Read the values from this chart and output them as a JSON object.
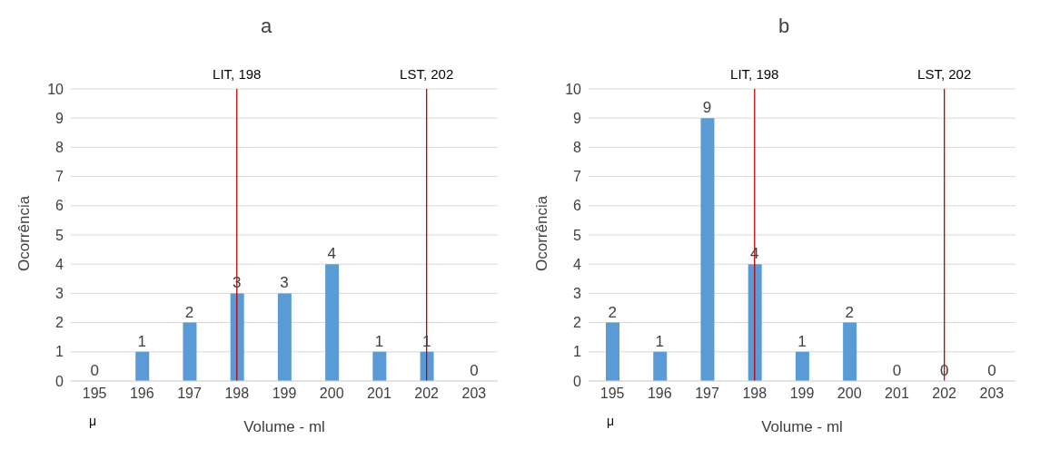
{
  "chart_data": [
    {
      "type": "bar",
      "title": "a",
      "xlabel": "Volume - ml",
      "ylabel": "Ocorrência",
      "x": [
        195,
        196,
        197,
        198,
        199,
        200,
        201,
        202,
        203
      ],
      "values": [
        0,
        1,
        2,
        3,
        3,
        4,
        1,
        1,
        0
      ],
      "color": "#5b9bd5",
      "xlim": [
        194.5,
        203.5
      ],
      "xticks": [
        195,
        196,
        197,
        198,
        199,
        200,
        201,
        202,
        203
      ],
      "ylim": [
        0,
        10
      ],
      "yticks": [
        0,
        1,
        2,
        3,
        4,
        5,
        6,
        7,
        8,
        9,
        10
      ],
      "grid": "y",
      "data_labels": true,
      "legend": false,
      "ref_lines": [
        {
          "axis": "x",
          "value": 198,
          "label": "LIT, 198",
          "color": "#c00000"
        },
        {
          "axis": "x",
          "value": 202,
          "label": "LST, 202",
          "color": "#c00000"
        }
      ],
      "annotations": [
        "μ"
      ]
    },
    {
      "type": "bar",
      "title": "b",
      "xlabel": "Volume - ml",
      "ylabel": "Ocorrência",
      "x": [
        195,
        196,
        197,
        198,
        199,
        200,
        201,
        202,
        203
      ],
      "values": [
        2,
        1,
        9,
        4,
        1,
        2,
        0,
        0,
        0
      ],
      "color": "#5b9bd5",
      "xlim": [
        194.5,
        203.5
      ],
      "xticks": [
        195,
        196,
        197,
        198,
        199,
        200,
        201,
        202,
        203
      ],
      "ylim": [
        0,
        10
      ],
      "yticks": [
        0,
        1,
        2,
        3,
        4,
        5,
        6,
        7,
        8,
        9,
        10
      ],
      "grid": "y",
      "data_labels": true,
      "legend": false,
      "ref_lines": [
        {
          "axis": "x",
          "value": 198,
          "label": "LIT, 198",
          "color": "#c00000"
        },
        {
          "axis": "x",
          "value": 202,
          "label": "LST, 202",
          "color": "#c00000"
        }
      ],
      "annotations": [
        "μ"
      ]
    }
  ]
}
